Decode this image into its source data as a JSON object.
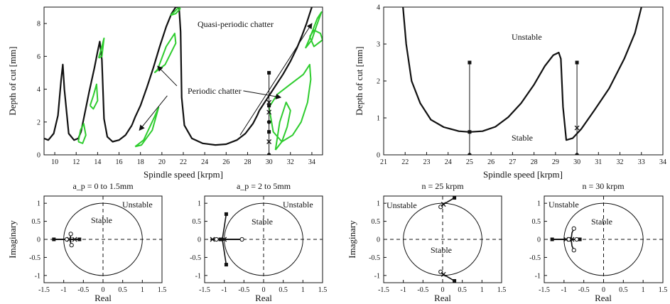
{
  "colors": {
    "lobe": "#111111",
    "chatter": "#2ecc2e",
    "axes": "#111111",
    "background": "#ffffff"
  },
  "chart_data": [
    {
      "id": "sld-left",
      "type": "line",
      "xlabel": "Spindle speed [krpm]",
      "ylabel": "Depth of cut [mm]",
      "xlim": [
        9,
        35
      ],
      "ylim": [
        0,
        9
      ],
      "xticks": [
        10,
        12,
        14,
        16,
        18,
        20,
        22,
        24,
        26,
        28,
        30,
        32,
        34
      ],
      "yticks": [
        0,
        2,
        4,
        6,
        8
      ],
      "annotations": [
        "Quasi-periodic chatter",
        "Periodic chatter"
      ],
      "series": [
        {
          "style": "lobe",
          "x": [
            9.0,
            9.4,
            9.9,
            10.3,
            10.6,
            10.75,
            10.9,
            11.3,
            11.8,
            12.2,
            12.45
          ],
          "y": [
            1.0,
            0.9,
            1.3,
            2.4,
            4.6,
            5.5,
            4.0,
            1.3,
            0.9,
            1.0,
            1.4
          ]
        },
        {
          "style": "lobe",
          "x": [
            12.45,
            12.7,
            13.2,
            13.7,
            14.0,
            14.2,
            14.4,
            14.6,
            14.9,
            15.4,
            16.0,
            16.6,
            17.2
          ],
          "y": [
            1.4,
            2.2,
            3.8,
            5.3,
            6.3,
            6.9,
            5.8,
            2.2,
            1.1,
            0.8,
            0.9,
            1.2,
            1.8
          ]
        },
        {
          "style": "lobe",
          "x": [
            17.2,
            17.5,
            18.0,
            18.6,
            19.2,
            19.8,
            20.4,
            20.9,
            21.3,
            21.6,
            21.75,
            21.85,
            22.1,
            22.8,
            23.8,
            25.0,
            26.0,
            27.0,
            27.8,
            28.5,
            28.9,
            29.1
          ],
          "y": [
            1.8,
            2.3,
            3.0,
            4.1,
            5.3,
            6.6,
            7.8,
            8.6,
            9.0,
            9.0,
            7.5,
            3.5,
            1.8,
            1.0,
            0.7,
            0.6,
            0.65,
            0.9,
            1.3,
            1.9,
            2.4,
            2.7
          ]
        },
        {
          "style": "lobe",
          "x": [
            29.1,
            29.7,
            30.5,
            31.3,
            32.0,
            32.6,
            33.1,
            33.5,
            33.8,
            34.0
          ],
          "y": [
            2.7,
            3.3,
            4.1,
            4.9,
            5.7,
            6.5,
            7.3,
            8.0,
            8.6,
            9.0
          ]
        },
        {
          "style": "chatter",
          "x": [
            12.2,
            12.4,
            12.7,
            12.9,
            12.6,
            12.2
          ],
          "y": [
            0.8,
            1.5,
            1.9,
            1.2,
            0.7,
            0.8
          ]
        },
        {
          "style": "chatter",
          "x": [
            13.3,
            13.6,
            13.9,
            14.0,
            13.6,
            13.3
          ],
          "y": [
            3.0,
            3.6,
            4.3,
            3.3,
            2.8,
            3.0
          ]
        },
        {
          "style": "chatter",
          "x": [
            14.1,
            14.4,
            14.6,
            14.4,
            14.1
          ],
          "y": [
            5.9,
            6.6,
            7.1,
            6.0,
            5.9
          ]
        },
        {
          "style": "chatter",
          "x": [
            17.5,
            18.3,
            19.3,
            19.7,
            19.1,
            18.1,
            17.5
          ],
          "y": [
            0.5,
            0.9,
            2.3,
            2.9,
            1.5,
            0.6,
            0.5
          ]
        },
        {
          "style": "chatter",
          "x": [
            19.3,
            20.3,
            21.3,
            21.2,
            20.4,
            19.6,
            19.3
          ],
          "y": [
            5.0,
            5.5,
            6.8,
            7.4,
            6.6,
            5.2,
            5.0
          ]
        },
        {
          "style": "chatter",
          "x": [
            20.8,
            21.3,
            21.6,
            21.7,
            21.3,
            20.8
          ],
          "y": [
            8.5,
            8.8,
            9.0,
            8.9,
            8.6,
            8.5
          ]
        },
        {
          "style": "chatter",
          "x": [
            30.6,
            31.2,
            31.7,
            32.0,
            31.6,
            31.0,
            30.6
          ],
          "y": [
            0.3,
            0.8,
            1.7,
            2.7,
            3.2,
            2.0,
            0.3
          ]
        },
        {
          "style": "chatter",
          "x": [
            30.0,
            30.8,
            32.0,
            33.2,
            33.8,
            33.9,
            33.6,
            33.0,
            32.2,
            31.2,
            30.4,
            30.0
          ],
          "y": [
            2.9,
            3.7,
            4.3,
            4.9,
            5.5,
            4.6,
            3.2,
            2.0,
            1.2,
            0.8,
            1.4,
            2.9
          ]
        },
        {
          "style": "chatter",
          "x": [
            33.4,
            34.0,
            34.4,
            34.9,
            34.5,
            33.8,
            33.4
          ],
          "y": [
            6.5,
            7.0,
            7.8,
            8.7,
            8.3,
            7.1,
            6.5
          ]
        },
        {
          "style": "chatter",
          "x": [
            33.8,
            34.2,
            34.6,
            35.0,
            34.8,
            34.2,
            33.8
          ],
          "y": [
            7.2,
            6.6,
            6.8,
            7.0,
            7.4,
            7.6,
            7.2
          ]
        }
      ],
      "markers": {
        "line_x": 30,
        "line_y": [
          0,
          5
        ],
        "squares": [
          [
            30,
            5.0
          ],
          [
            30,
            1.4
          ],
          [
            30,
            3.0
          ]
        ],
        "circles": [
          [
            30,
            0
          ],
          [
            30,
            2.0
          ]
        ],
        "crosses": [
          [
            30,
            0.8
          ],
          [
            30,
            3.2
          ],
          [
            30,
            2.6
          ]
        ]
      },
      "arrows": [
        {
          "from": [
            27.3,
            1.2
          ],
          "to": [
            34.0,
            8.0
          ]
        },
        {
          "from": [
            20.5,
            3.6
          ],
          "to": [
            17.9,
            1.5
          ]
        },
        {
          "from": [
            21.4,
            4.2
          ],
          "to": [
            19.6,
            5.4
          ]
        },
        {
          "from": [
            27.6,
            3.9
          ],
          "to": [
            31.1,
            3.5
          ]
        }
      ]
    },
    {
      "id": "sld-right",
      "type": "line",
      "xlabel": "Spindle speed [krpm]",
      "ylabel": "Depth of cut [mm]",
      "xlim": [
        21,
        34
      ],
      "ylim": [
        0,
        4
      ],
      "xticks": [
        21,
        22,
        23,
        24,
        25,
        26,
        27,
        28,
        29,
        30,
        31,
        32,
        33,
        34
      ],
      "yticks": [
        0,
        1,
        2,
        3,
        4
      ],
      "annotations": [
        "Unstable",
        "Stable"
      ],
      "series": [
        {
          "style": "lobe",
          "x": [
            21.9,
            22.05,
            22.3,
            22.7,
            23.2,
            23.8,
            24.5,
            25.0,
            25.6,
            26.2,
            26.8,
            27.4,
            28.0,
            28.5,
            28.9,
            29.15,
            29.25,
            29.35
          ],
          "y": [
            4.0,
            3.0,
            2.0,
            1.4,
            0.95,
            0.75,
            0.64,
            0.62,
            0.64,
            0.76,
            1.02,
            1.4,
            1.9,
            2.4,
            2.7,
            2.77,
            2.6,
            1.3
          ]
        },
        {
          "style": "lobe",
          "x": [
            29.35,
            29.5,
            29.8,
            30.2,
            30.8,
            31.5,
            32.2,
            32.7,
            33.0
          ],
          "y": [
            1.3,
            0.4,
            0.45,
            0.7,
            1.2,
            1.8,
            2.6,
            3.3,
            4.0
          ]
        }
      ],
      "markers": {
        "lines": [
          {
            "x": 25,
            "y": [
              0,
              2.5
            ]
          },
          {
            "x": 30,
            "y": [
              0,
              2.5
            ]
          }
        ],
        "squares": [
          [
            25,
            2.5
          ],
          [
            25,
            0.62
          ],
          [
            30,
            2.5
          ]
        ],
        "circles": [
          [
            25,
            0
          ],
          [
            30,
            0
          ]
        ],
        "crosses": [
          [
            30,
            0.73
          ]
        ]
      }
    },
    {
      "id": "nyq-1",
      "type": "scatter",
      "title": "a_p = 0  to 1.5mm",
      "xlabel": "Real",
      "ylabel": "Imaginary",
      "xlim": [
        -1.5,
        1.5
      ],
      "ylim": [
        -1.2,
        1.2
      ],
      "xticks": [
        "-1.5",
        "-1",
        "-0.5",
        "0",
        "0.5",
        "1",
        "1.5"
      ],
      "yticks": [
        "-1",
        "-0.5",
        "0",
        "0.5",
        "1"
      ],
      "annotations": [
        "Unstable",
        "Stable"
      ],
      "trace": {
        "x": [
          -1.25,
          -1.0,
          -0.85,
          -0.6
        ],
        "y": [
          0,
          0,
          0,
          0
        ]
      },
      "branches": [
        {
          "x": [
            -0.85,
            -0.82,
            -0.78
          ],
          "y": [
            0,
            0.1,
            0.15
          ]
        },
        {
          "x": [
            -0.85,
            -0.82,
            -0.78
          ],
          "y": [
            0,
            -0.1,
            -0.16
          ]
        }
      ],
      "points": {
        "squares": [
          [
            -1.25,
            0
          ],
          [
            -0.6,
            0
          ]
        ],
        "circles": [
          [
            -0.82,
            0.15
          ],
          [
            -0.8,
            -0.16
          ],
          [
            -0.92,
            0
          ]
        ],
        "crosses": [
          [
            -0.86,
            0
          ],
          [
            -0.72,
            0
          ]
        ]
      }
    },
    {
      "id": "nyq-2",
      "type": "scatter",
      "title": "a_p = 2  to 5mm",
      "xlabel": "Real",
      "ylabel": "",
      "xlim": [
        -1.5,
        1.5
      ],
      "ylim": [
        -1.2,
        1.2
      ],
      "xticks": [
        "-1.5",
        "-1",
        "-0.5",
        "0",
        "0.5",
        "1",
        "1.5"
      ],
      "yticks": [
        "-1",
        "-0.5",
        "0",
        "0.5",
        "1"
      ],
      "annotations": [
        "Unstable",
        "Stable"
      ],
      "trace": {
        "x": [
          -1.35,
          -0.55
        ],
        "y": [
          0,
          0
        ]
      },
      "branches": [
        {
          "x": [
            -1.05,
            -1.0,
            -0.95
          ],
          "y": [
            0,
            0.35,
            0.7
          ]
        },
        {
          "x": [
            -1.05,
            -1.0,
            -0.95
          ],
          "y": [
            0,
            -0.35,
            -0.7
          ]
        }
      ],
      "points": {
        "squares": [
          [
            -0.95,
            0.7
          ],
          [
            -0.95,
            -0.7
          ],
          [
            -1.1,
            0
          ]
        ],
        "circles": [
          [
            -0.55,
            0
          ],
          [
            -1.2,
            0
          ]
        ],
        "crosses": [
          [
            -1.0,
            0
          ],
          [
            -1.3,
            0
          ]
        ]
      }
    },
    {
      "id": "nyq-3",
      "type": "scatter",
      "title": "n = 25 krpm",
      "xlabel": "Real",
      "ylabel": "Imaginary",
      "xlim": [
        -1.5,
        1.5
      ],
      "ylim": [
        -1.2,
        1.2
      ],
      "xticks": [
        "-1.5",
        "-1",
        "-0.5",
        "0",
        "0.5",
        "1",
        "1.5"
      ],
      "yticks": [
        "-1",
        "-0.5",
        "0",
        "0.5",
        "1"
      ],
      "annotations": [
        "Unstable",
        "Stable"
      ],
      "trace": {
        "x": [],
        "y": []
      },
      "branches": [
        {
          "x": [
            -0.05,
            0.1,
            0.3
          ],
          "y": [
            0.92,
            1.02,
            1.15
          ]
        },
        {
          "x": [
            -0.05,
            0.1,
            0.3
          ],
          "y": [
            -0.92,
            -1.02,
            -1.15
          ]
        }
      ],
      "points": {
        "squares": [
          [
            0.3,
            1.15
          ],
          [
            0.3,
            -1.15
          ]
        ],
        "circles": [
          [
            -0.05,
            0.9
          ],
          [
            -0.05,
            -0.9
          ]
        ],
        "crosses": [
          [
            0.02,
            0.97
          ],
          [
            0.02,
            -0.97
          ]
        ]
      }
    },
    {
      "id": "nyq-4",
      "type": "scatter",
      "title": "n = 30 krpm",
      "xlabel": "Real",
      "ylabel": "",
      "xlim": [
        -1.5,
        1.5
      ],
      "ylim": [
        -1.2,
        1.2
      ],
      "xticks": [
        "-1.5",
        "-1",
        "-0.5",
        "0",
        "0.5",
        "1",
        "1.5"
      ],
      "yticks": [
        "-1",
        "-0.5",
        "0",
        "0.5",
        "1"
      ],
      "annotations": [
        "Unstable",
        "Stable"
      ],
      "trace": {
        "x": [
          -1.3,
          -0.6
        ],
        "y": [
          0,
          0
        ]
      },
      "branches": [
        {
          "x": [
            -0.82,
            -0.8,
            -0.75
          ],
          "y": [
            0,
            0.18,
            0.3
          ]
        },
        {
          "x": [
            -0.82,
            -0.8,
            -0.75
          ],
          "y": [
            0,
            -0.18,
            -0.3
          ]
        }
      ],
      "points": {
        "squares": [
          [
            -1.3,
            0
          ],
          [
            -0.6,
            0
          ]
        ],
        "circles": [
          [
            -0.75,
            0.3
          ],
          [
            -0.75,
            -0.3
          ],
          [
            -0.88,
            0
          ],
          [
            -0.68,
            0
          ]
        ],
        "crosses": [
          [
            -0.95,
            0
          ],
          [
            -0.8,
            0
          ]
        ]
      }
    }
  ]
}
